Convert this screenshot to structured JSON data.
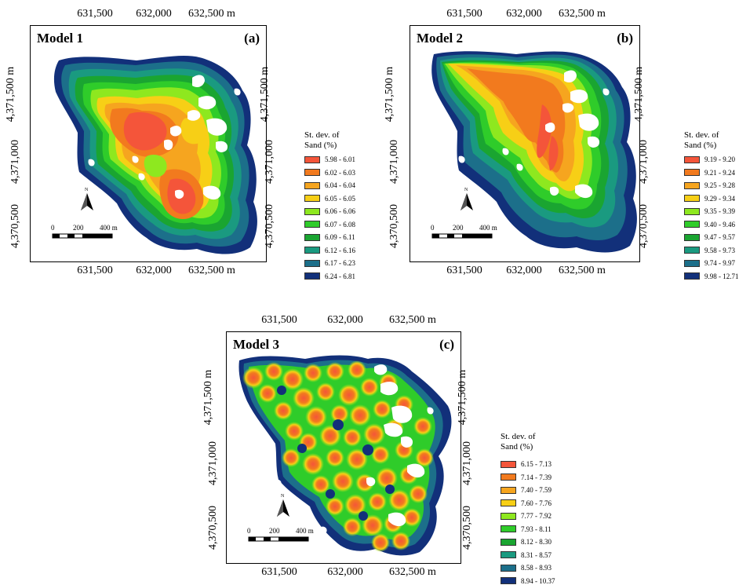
{
  "panels": [
    {
      "model": "Model 1",
      "letter": "(a)",
      "x_ticks": [
        "631,500",
        "632,000",
        "632,500 m"
      ],
      "y_ticks": [
        "4,371,500 m",
        "4,371,000",
        "4,370,500"
      ],
      "legend_title": [
        "St. dev. of",
        "Sand (%)"
      ],
      "legend": [
        "5.98 - 6.01",
        "6.02 - 6.03",
        "6.04 - 6.04",
        "6.05 - 6.05",
        "6.06 - 6.06",
        "6.07 - 6.08",
        "6.09 - 6.11",
        "6.12 - 6.16",
        "6.17 - 6.23",
        "6.24 - 6.81"
      ],
      "scale": [
        "0",
        "200",
        "400 m"
      ]
    },
    {
      "model": "Model 2",
      "letter": "(b)",
      "x_ticks": [
        "631,500",
        "632,000",
        "632,500 m"
      ],
      "y_ticks": [
        "4,371,500 m",
        "4,371,000",
        "4,370,500"
      ],
      "legend_title": [
        "St. dev. of",
        "Sand (%)"
      ],
      "legend": [
        "9.19 - 9.20",
        "9.21 - 9.24",
        "9.25 - 9.28",
        "9.29 - 9.34",
        "9.35 - 9.39",
        "9.40 - 9.46",
        "9.47 - 9.57",
        "9.58 - 9.73",
        "9.74 - 9.97",
        "9.98 - 12.71"
      ],
      "scale": [
        "0",
        "200",
        "400 m"
      ]
    },
    {
      "model": "Model 3",
      "letter": "(c)",
      "x_ticks": [
        "631,500",
        "632,000",
        "632,500 m"
      ],
      "y_ticks": [
        "4,371,500 m",
        "4,371,000",
        "4,370,500"
      ],
      "legend_title": [
        "St. dev. of",
        "Sand (%)"
      ],
      "legend": [
        "6.15 - 7.13",
        "7.14 - 7.39",
        "7.40 - 7.59",
        "7.60 - 7.76",
        "7.77 - 7.92",
        "7.93 - 8.11",
        "8.12 - 8.30",
        "8.31 - 8.57",
        "8.58 - 8.93",
        "8.94 - 10.37"
      ],
      "scale": [
        "0",
        "200",
        "400 m"
      ]
    }
  ],
  "north_label": "N",
  "colors": [
    "#f4553a",
    "#f27a1e",
    "#f6a51f",
    "#f7cf16",
    "#8ee81f",
    "#2fcc2a",
    "#1aa531",
    "#1a9a80",
    "#1c6f8a",
    "#12307a"
  ]
}
